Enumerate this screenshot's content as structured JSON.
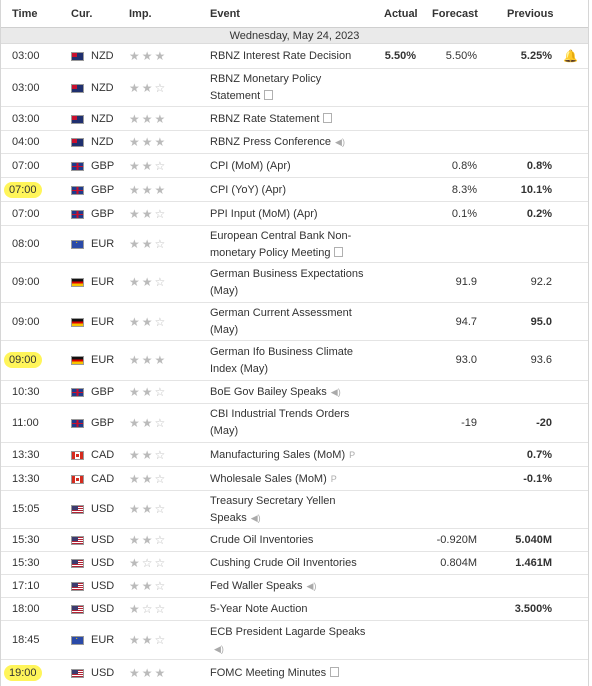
{
  "headers": {
    "time": "Time",
    "cur": "Cur.",
    "imp": "Imp.",
    "event": "Event",
    "actual": "Actual",
    "forecast": "Forecast",
    "previous": "Previous"
  },
  "date_label": "Wednesday, May 24, 2023",
  "rows": [
    {
      "time": "03:00",
      "cur": "NZD",
      "stars": "★★★",
      "event": "RBNZ Interest Rate Decision",
      "actual": "5.50%",
      "forecast": "5.50%",
      "previous": "5.25%",
      "alert": "🔔"
    },
    {
      "time": "03:00",
      "cur": "NZD",
      "stars": "★★☆",
      "event": "RBNZ Monetary Policy Statement"
    },
    {
      "time": "03:00",
      "cur": "NZD",
      "stars": "★★★",
      "event": "RBNZ Rate Statement"
    },
    {
      "time": "04:00",
      "cur": "NZD",
      "stars": "★★★",
      "event": "RBNZ Press Conference"
    },
    {
      "time": "07:00",
      "cur": "GBP",
      "stars": "★★☆",
      "event": "CPI (MoM) (Apr)",
      "forecast": "0.8%",
      "previous": "0.8%"
    },
    {
      "time": "07:00",
      "cur": "GBP",
      "stars": "★★★",
      "event": "CPI (YoY) (Apr)",
      "forecast": "8.3%",
      "previous": "10.1%"
    },
    {
      "time": "07:00",
      "cur": "GBP",
      "stars": "★★☆",
      "event": "PPI Input (MoM) (Apr)",
      "forecast": "0.1%",
      "previous": "0.2%"
    },
    {
      "time": "08:00",
      "cur": "EUR",
      "stars": "★★☆",
      "event": "European Central Bank Non-monetary Policy Meeting"
    },
    {
      "time": "09:00",
      "cur": "EUR",
      "stars": "★★☆",
      "event": "German Business Expectations (May)",
      "forecast": "91.9",
      "previous": "92.2"
    },
    {
      "time": "09:00",
      "cur": "EUR",
      "stars": "★★☆",
      "event": "German Current Assessment (May)",
      "forecast": "94.7",
      "previous": "95.0"
    },
    {
      "time": "09:00",
      "cur": "EUR",
      "stars": "★★★",
      "event": "German Ifo Business Climate Index (May)",
      "forecast": "93.0",
      "previous": "93.6"
    },
    {
      "time": "10:30",
      "cur": "GBP",
      "stars": "★★☆",
      "event": "BoE Gov Bailey Speaks"
    },
    {
      "time": "11:00",
      "cur": "GBP",
      "stars": "★★☆",
      "event": "CBI Industrial Trends Orders (May)",
      "forecast": "-19",
      "previous": "-20"
    },
    {
      "time": "13:30",
      "cur": "CAD",
      "stars": "★★☆",
      "event": "Manufacturing Sales (MoM)",
      "previous": "0.7%"
    },
    {
      "time": "13:30",
      "cur": "CAD",
      "stars": "★★☆",
      "event": "Wholesale Sales (MoM)",
      "previous": "-0.1%"
    },
    {
      "time": "15:05",
      "cur": "USD",
      "stars": "★★☆",
      "event": "Treasury Secretary Yellen Speaks"
    },
    {
      "time": "15:30",
      "cur": "USD",
      "stars": "★★☆",
      "event": "Crude Oil Inventories",
      "forecast": "-0.920M",
      "previous": "5.040M"
    },
    {
      "time": "15:30",
      "cur": "USD",
      "stars": "★☆☆",
      "event": "Cushing Crude Oil Inventories",
      "forecast": "0.804M",
      "previous": "1.461M"
    },
    {
      "time": "17:10",
      "cur": "USD",
      "stars": "★★☆",
      "event": "Fed Waller Speaks"
    },
    {
      "time": "18:00",
      "cur": "USD",
      "stars": "★☆☆",
      "event": "5-Year Note Auction",
      "previous": "3.500%"
    },
    {
      "time": "18:45",
      "cur": "EUR",
      "stars": "★★☆",
      "event": "ECB President Lagarde Speaks"
    },
    {
      "time": "19:00",
      "cur": "USD",
      "stars": "★★★",
      "event": "FOMC Meeting Minutes"
    }
  ],
  "tags": {
    "preliminary": "P"
  },
  "colors": {
    "highlight": "#fff55a",
    "row_border": "#e4e4e4",
    "date_bg": "#eaeaea"
  }
}
